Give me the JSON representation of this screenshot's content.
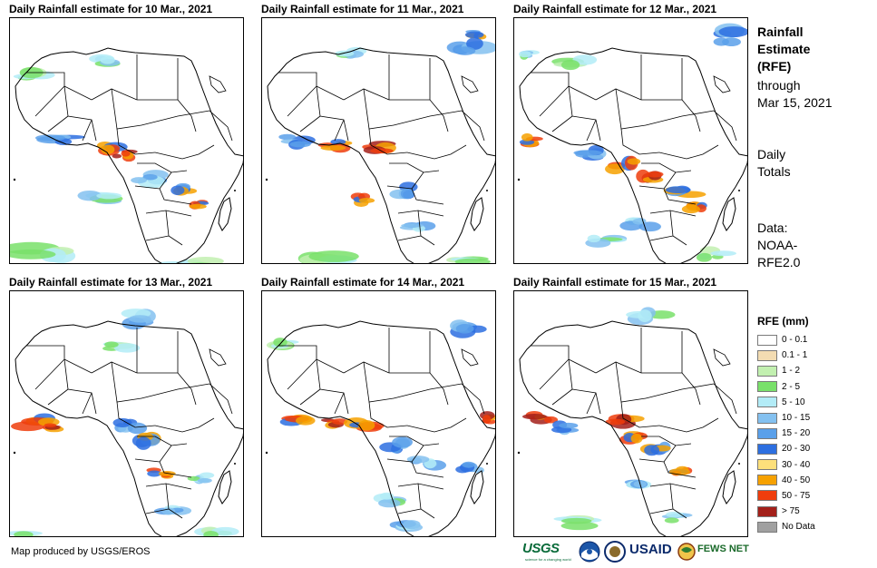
{
  "panels": [
    {
      "title": "Daily Rainfall estimate for 10 Mar., 2021"
    },
    {
      "title": "Daily Rainfall estimate for 11 Mar., 2021"
    },
    {
      "title": "Daily Rainfall estimate for 12 Mar., 2021"
    },
    {
      "title": "Daily Rainfall estimate for 13 Mar., 2021"
    },
    {
      "title": "Daily Rainfall estimate for 14 Mar., 2021"
    },
    {
      "title": "Daily Rainfall estimate for 15 Mar., 2021"
    }
  ],
  "side": {
    "title_line1": "Rainfall",
    "title_line2": "Estimate",
    "title_line3": "(RFE)",
    "through_line1": "through",
    "through_line2": "Mar 15, 2021",
    "totals_line1": "Daily",
    "totals_line2": "Totals",
    "data_line1": "Data:",
    "data_line2": "NOAA-",
    "data_line3": "RFE2.0"
  },
  "legend": {
    "title": "RFE (mm)",
    "items": [
      {
        "label": "0 - 0.1",
        "color": "#ffffff"
      },
      {
        "label": "0.1 - 1",
        "color": "#f3dcb2"
      },
      {
        "label": "1 - 2",
        "color": "#c2f0b0"
      },
      {
        "label": "2 - 5",
        "color": "#79e06a"
      },
      {
        "label": "5 - 10",
        "color": "#b3ecf7"
      },
      {
        "label": "10 - 15",
        "color": "#84c1f0"
      },
      {
        "label": "15 - 20",
        "color": "#5aa0ea"
      },
      {
        "label": "20 - 30",
        "color": "#2d6fe0"
      },
      {
        "label": "30 - 40",
        "color": "#fde07b"
      },
      {
        "label": "40 - 50",
        "color": "#f6a100"
      },
      {
        "label": "50 - 75",
        "color": "#ef3d0c"
      },
      {
        "label": "> 75",
        "color": "#a3201a"
      },
      {
        "label": "No Data",
        "color": "#a0a0a0"
      }
    ]
  },
  "footer": {
    "credit": "Map produced by USGS/EROS",
    "logos": {
      "usgs": "USGS",
      "usgs_tagline": "science for a changing world",
      "usaid": "USAID",
      "fews": "FEWS NET"
    }
  }
}
